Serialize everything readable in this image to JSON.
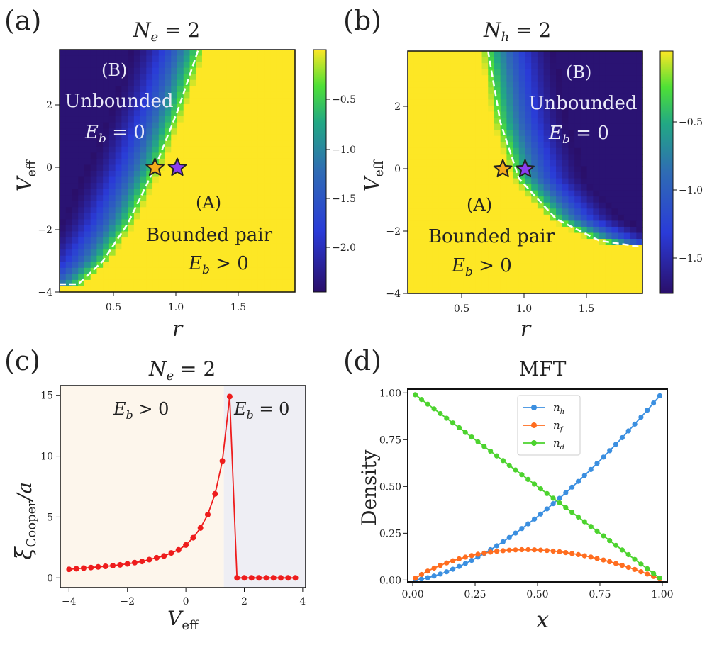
{
  "panels": {
    "a": {
      "letter": "(a)",
      "title_base": "N",
      "title_sub": "e",
      "title_rest": " = 2",
      "ylabel_base": "V",
      "ylabel_sub": "eff",
      "xlabel": "r",
      "x_ticks": [
        "0.5",
        "1.0",
        "1.5"
      ],
      "y_ticks": [
        "−4",
        "−2",
        "0",
        "2"
      ],
      "colorbar_ticks": [
        "−0.5",
        "−1.0",
        "−1.5",
        "−2.0"
      ],
      "region_b_tag": "(B)",
      "region_b_name": "Unbounded",
      "region_b_cond": "E_b = 0",
      "region_a_tag": "(A)",
      "region_a_name": "Bounded pair",
      "region_a_cond": "E_b > 0"
    },
    "b": {
      "letter": "(b)",
      "title_base": "N",
      "title_sub": "h",
      "title_rest": " = 2",
      "ylabel_base": "V",
      "ylabel_sub": "eff",
      "xlabel": "r",
      "x_ticks": [
        "0.5",
        "1.0",
        "1.5"
      ],
      "y_ticks": [
        "−4",
        "−2",
        "0",
        "2"
      ],
      "colorbar_ticks": [
        "−0.5",
        "−1.0",
        "−1.5"
      ],
      "region_b_tag": "(B)",
      "region_b_name": "Unbounded",
      "region_b_cond": "E_b = 0",
      "region_a_tag": "(A)",
      "region_a_name": "Bounded pair",
      "region_a_cond": "E_b > 0"
    },
    "c": {
      "letter": "(c)",
      "title_base": "N",
      "title_sub": "e",
      "title_rest": " = 2",
      "ylabel_base": "ξ",
      "ylabel_sub": "Cooper",
      "ylabel_rest": "/a",
      "xlabel_base": "V",
      "xlabel_sub": "eff",
      "x_ticks": [
        "−4",
        "−2",
        "0",
        "2",
        "4"
      ],
      "y_ticks": [
        "0",
        "5",
        "10",
        "15"
      ],
      "region_left": "E_b > 0",
      "region_right": "E_b = 0"
    },
    "d": {
      "letter": "(d)",
      "title": "MFT",
      "ylabel": "Density",
      "xlabel": "x",
      "x_ticks": [
        "0.00",
        "0.25",
        "0.50",
        "0.75",
        "1.00"
      ],
      "y_ticks": [
        "0.00",
        "0.25",
        "0.50",
        "0.75",
        "1.00"
      ],
      "legend": [
        {
          "base": "n",
          "sub": "h"
        },
        {
          "base": "n",
          "sub": "f"
        },
        {
          "base": "n",
          "sub": "d"
        }
      ]
    }
  },
  "colors": {
    "yellow": "#fde725",
    "navy": "#23116e",
    "blue": "#3b8fe0",
    "orange": "#ff6d1f",
    "green": "#4cd32e",
    "red": "#ee1c1c",
    "star_gold": "#f4ac1a",
    "star_purple": "#8b3ef0",
    "bg_left": "#fdf6ec",
    "bg_right": "#eeeef4"
  },
  "chart_data": [
    {
      "type": "heatmap",
      "panel": "a",
      "title": "N_e = 2",
      "xlabel": "r",
      "ylabel": "V_eff",
      "xlim": [
        0.05,
        1.95
      ],
      "ylim": [
        -4.0,
        3.8
      ],
      "colorbar_range": [
        -2.4,
        0.0
      ],
      "boundary_r": [
        0.05,
        0.2,
        0.4,
        0.6,
        0.82,
        1.0,
        1.17
      ],
      "boundary_V": [
        -3.75,
        -3.75,
        -3.0,
        -1.8,
        0.0,
        1.8,
        3.8
      ],
      "markers": [
        {
          "r": 0.82,
          "V": 0.0,
          "color": "gold"
        },
        {
          "r": 1.0,
          "V": 0.0,
          "color": "purple"
        }
      ]
    },
    {
      "type": "heatmap",
      "panel": "b",
      "title": "N_h = 2",
      "xlabel": "r",
      "ylabel": "V_eff",
      "xlim": [
        0.05,
        1.95
      ],
      "ylim": [
        -4.0,
        3.8
      ],
      "colorbar_range": [
        -1.75,
        0.0
      ],
      "boundary_r": [
        0.7,
        0.8,
        0.95,
        1.25,
        1.6,
        1.93
      ],
      "boundary_V": [
        3.8,
        1.5,
        -0.3,
        -1.6,
        -2.3,
        -2.5
      ],
      "markers": [
        {
          "r": 0.82,
          "V": 0.0,
          "color": "gold"
        },
        {
          "r": 1.0,
          "V": 0.0,
          "color": "purple"
        }
      ]
    },
    {
      "type": "line",
      "panel": "c",
      "title": "N_e = 2",
      "xlabel": "V_eff",
      "ylabel": "ξ_Cooper / a",
      "xlim": [
        -4.3,
        4.1
      ],
      "ylim": [
        -0.8,
        15.8
      ],
      "x": [
        -4.0,
        -3.75,
        -3.5,
        -3.25,
        -3.0,
        -2.75,
        -2.5,
        -2.25,
        -2.0,
        -1.75,
        -1.5,
        -1.25,
        -1.0,
        -0.75,
        -0.5,
        -0.25,
        0.0,
        0.25,
        0.5,
        0.75,
        1.0,
        1.25,
        1.5,
        1.75,
        2.0,
        2.25,
        2.5,
        2.75,
        3.0,
        3.25,
        3.5,
        3.75
      ],
      "y": [
        0.7,
        0.75,
        0.8,
        0.85,
        0.9,
        0.95,
        1.0,
        1.07,
        1.15,
        1.25,
        1.35,
        1.5,
        1.65,
        1.8,
        2.05,
        2.3,
        2.7,
        3.3,
        4.1,
        5.2,
        6.9,
        9.6,
        14.9,
        0.0,
        0.0,
        0.0,
        0.0,
        0.0,
        0.0,
        0.0,
        0.0,
        0.0
      ],
      "regions": [
        {
          "label": "E_b > 0",
          "from": -4.3,
          "to": 1.3
        },
        {
          "label": "E_b = 0",
          "from": 1.3,
          "to": 4.1
        }
      ]
    },
    {
      "type": "line",
      "panel": "d",
      "title": "MFT",
      "xlabel": "x",
      "ylabel": "Density",
      "xlim": [
        -0.02,
        1.02
      ],
      "ylim": [
        -0.01,
        1.02
      ],
      "series": [
        {
          "name": "n_h",
          "formula": "x^1.56, sampled at x = 0.01 … 0.99 in 40 points"
        },
        {
          "name": "n_f",
          "formula": "x - x^1.56"
        },
        {
          "name": "n_d",
          "formula": "1 - x"
        }
      ],
      "x_samples": {
        "start": 0.01,
        "end": 0.99,
        "count": 40
      }
    }
  ]
}
